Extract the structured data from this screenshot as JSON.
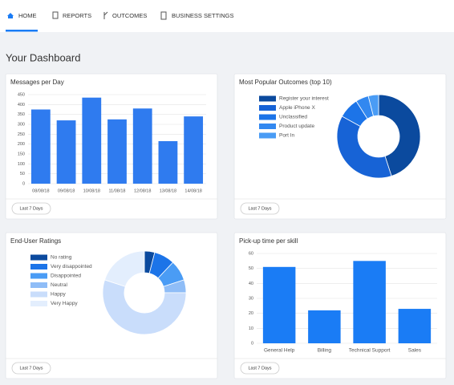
{
  "nav": {
    "items": [
      "HOME",
      "REPORTS",
      "OUTCOMES",
      "BUSINESS SETTINGS"
    ]
  },
  "heading": "Your Dashboard",
  "chart_data": [
    {
      "type": "bar",
      "title": "Messages per Day",
      "button": "Last 7 Days",
      "categories": [
        "08/08/18",
        "09/08/18",
        "10/08/18",
        "11/08/18",
        "12/08/18",
        "13/08/18",
        "14/08/18"
      ],
      "values": [
        375,
        320,
        435,
        325,
        380,
        215,
        340
      ],
      "color": "#2f7bef",
      "ylim": [
        0,
        450
      ],
      "yticks": [
        0,
        50,
        100,
        150,
        200,
        250,
        300,
        350,
        400,
        450
      ],
      "grid": true
    },
    {
      "type": "pie",
      "title": "Most Popular Outcomes (top 10)",
      "button": "Last 7 Days",
      "categories": [
        "Register your interest",
        "Apple iPhone X",
        "Unclassified",
        "Product update",
        "Port In"
      ],
      "values": [
        45,
        38,
        8,
        5,
        4
      ],
      "colors": [
        "#0b4a9e",
        "#1763d6",
        "#1c74e8",
        "#3288f0",
        "#4a9cf5"
      ]
    },
    {
      "type": "pie",
      "title": "End-User Ratings",
      "button": "Last 7 Days",
      "categories": [
        "No rating",
        "Very disappointed",
        "Disappointed",
        "Neutral",
        "Happy",
        "Very Happy"
      ],
      "values": [
        4,
        8,
        8,
        5,
        55,
        20
      ],
      "colors": [
        "#0b4a9e",
        "#1c74e8",
        "#4a9cf5",
        "#8fbdf7",
        "#c9ddfb",
        "#e3eefd"
      ]
    },
    {
      "type": "bar",
      "title": "Pick-up time per skill",
      "button": "Last 7 Days",
      "categories": [
        "General Help",
        "Billing",
        "Technical Support",
        "Sales"
      ],
      "values": [
        51,
        22,
        55,
        23
      ],
      "color": "#1a7cf5",
      "ylim": [
        0,
        60
      ],
      "yticks": [
        0,
        10,
        20,
        30,
        40,
        50,
        60
      ],
      "grid": true
    }
  ]
}
